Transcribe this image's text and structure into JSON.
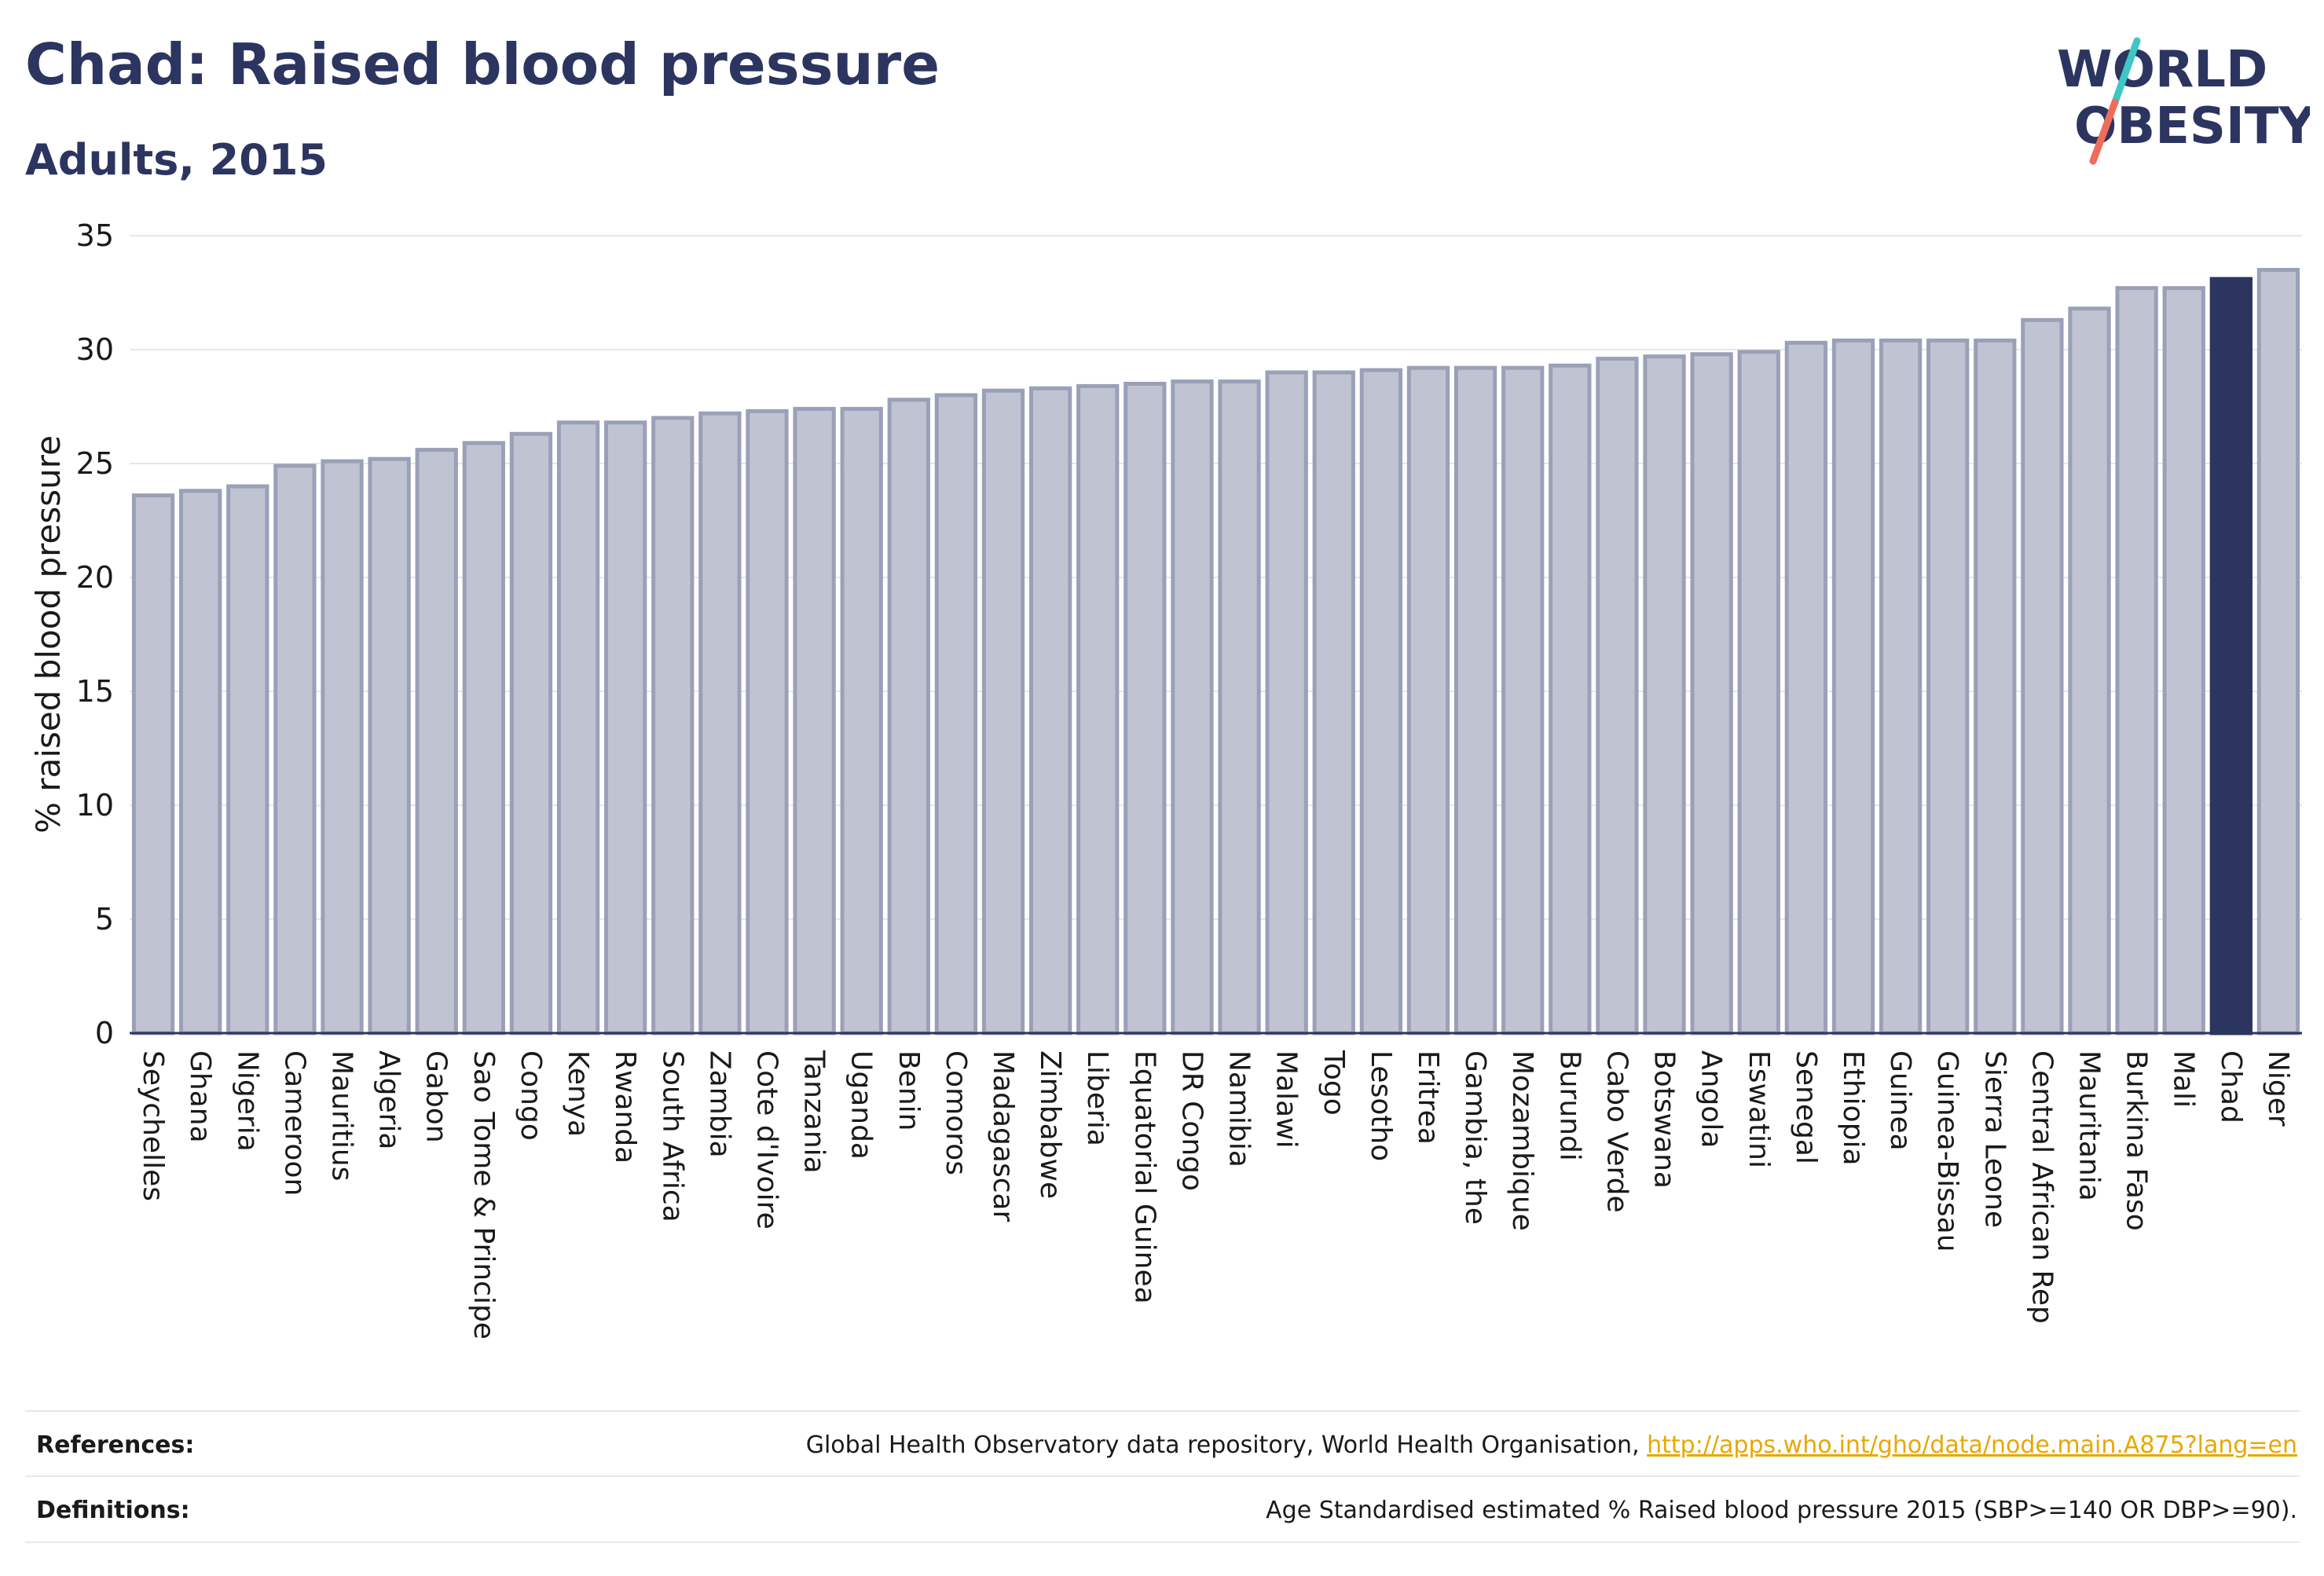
{
  "header": {
    "title": "Chad: Raised blood pressure",
    "subtitle": "Adults, 2015",
    "logo_line1": "WORLD",
    "logo_line2": "OBESITY"
  },
  "colors": {
    "bar_default": "#c0c4d2",
    "bar_border": "#9aa0b8",
    "bar_highlight": "#2c3560",
    "text_primary": "#2c3560",
    "link": "#e8a800",
    "logo_teal": "#3ec7c4",
    "logo_coral": "#ef6c5a"
  },
  "chart_data": {
    "type": "bar",
    "title": "Chad: Raised blood pressure",
    "subtitle": "Adults, 2015",
    "xlabel": "",
    "ylabel": "% raised blood pressure",
    "ylim": [
      0,
      35
    ],
    "yticks": [
      0,
      5,
      10,
      15,
      20,
      25,
      30,
      35
    ],
    "grid": true,
    "highlight": "Chad",
    "categories": [
      "Seychelles",
      "Ghana",
      "Nigeria",
      "Cameroon",
      "Mauritius",
      "Algeria",
      "Gabon",
      "Sao Tome & Principe",
      "Congo",
      "Kenya",
      "Rwanda",
      "South Africa",
      "Zambia",
      "Cote d'Ivoire",
      "Tanzania",
      "Uganda",
      "Benin",
      "Comoros",
      "Madagascar",
      "Zimbabwe",
      "Liberia",
      "Equatorial Guinea",
      "DR Congo",
      "Namibia",
      "Malawi",
      "Togo",
      "Lesotho",
      "Eritrea",
      "Gambia, the",
      "Mozambique",
      "Burundi",
      "Cabo Verde",
      "Botswana",
      "Angola",
      "Eswatini",
      "Senegal",
      "Ethiopia",
      "Guinea",
      "Guinea-Bissau",
      "Sierra Leone",
      "Central African Rep",
      "Mauritania",
      "Burkina Faso",
      "Mali",
      "Chad",
      "Niger"
    ],
    "values": [
      23.6,
      23.8,
      24.0,
      24.9,
      25.1,
      25.2,
      25.6,
      25.9,
      26.3,
      26.8,
      26.8,
      27.0,
      27.2,
      27.3,
      27.4,
      27.4,
      27.8,
      28.0,
      28.2,
      28.3,
      28.4,
      28.5,
      28.6,
      28.6,
      29.0,
      29.0,
      29.1,
      29.2,
      29.2,
      29.2,
      29.3,
      29.6,
      29.7,
      29.8,
      29.9,
      30.3,
      30.4,
      30.4,
      30.4,
      30.4,
      31.3,
      31.8,
      32.7,
      32.7,
      33.1,
      33.5
    ]
  },
  "footer": {
    "references_label": "References:",
    "references_text": "Global Health Observatory data repository, World Health Organisation, ",
    "references_link": "http://apps.who.int/gho/data/node.main.A875?lang=en",
    "definitions_label": "Definitions:",
    "definitions_text": "Age Standardised estimated % Raised blood pressure 2015 (SBP>=140 OR DBP>=90)."
  }
}
